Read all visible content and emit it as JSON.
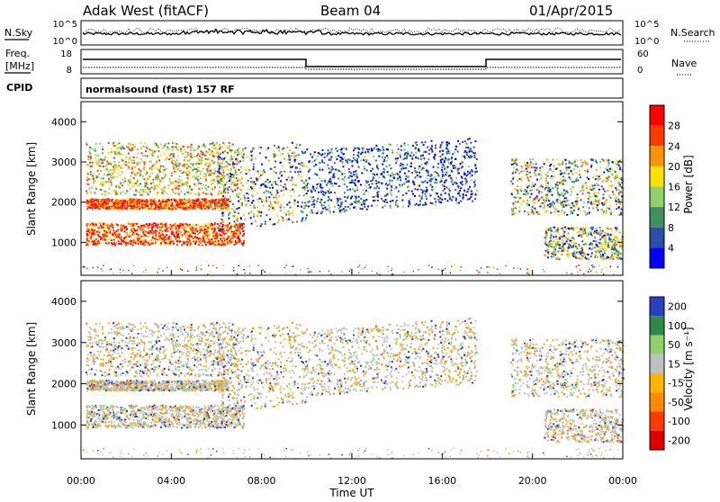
{
  "header": {
    "station": "Adak West (fitACF)",
    "beam": "Beam 04",
    "date": "01/Apr/2015"
  },
  "noise_panel": {
    "left_label": "N.Sky",
    "right_label": "N.Search",
    "left_ticks": [
      "10^5",
      "10^0"
    ],
    "right_ticks": [
      "10^5",
      "10^0"
    ]
  },
  "freq_panel": {
    "left_label_1": "Freq.",
    "left_label_2": "[MHz]",
    "right_label": "Nave",
    "left_ticks": [
      "18",
      "8"
    ],
    "right_ticks": [
      "60",
      "0"
    ]
  },
  "cpid": {
    "label": "CPID",
    "text": "normalsound (fast) 157 RF"
  },
  "x_axis": {
    "title": "Time UT",
    "ticks": [
      "00:00",
      "04:00",
      "08:00",
      "12:00",
      "16:00",
      "20:00",
      "00:00"
    ]
  },
  "chart_data": [
    {
      "type": "heatmap",
      "name": "power",
      "xlabel": "Time UT",
      "ylabel": "Slant Range [km]",
      "xlim": [
        0,
        24
      ],
      "ylim": [
        180,
        4500
      ],
      "y_ticks": [
        "1000",
        "2000",
        "3000",
        "4000"
      ],
      "colorbar": {
        "label": "Power [dB]",
        "ticks": [
          "4",
          "8",
          "12",
          "16",
          "20",
          "24",
          "28"
        ],
        "colors": [
          "#0000ff",
          "#2a4fa8",
          "#3f8f5f",
          "#8fd26a",
          "#ffe100",
          "#ff9400",
          "#ff3a00",
          "#ff0000"
        ]
      },
      "echo_regions": [
        {
          "t": [
            0.2,
            7.2
          ],
          "range": [
            950,
            1500
          ],
          "level": "high"
        },
        {
          "t": [
            0.2,
            6.5
          ],
          "range": [
            1850,
            2100
          ],
          "level": "high"
        },
        {
          "t": [
            0.2,
            7.0
          ],
          "range": [
            2200,
            3500
          ],
          "level": "mixed"
        },
        {
          "t": [
            6.0,
            10.0
          ],
          "range": [
            1300,
            3300
          ],
          "level": "medium"
        },
        {
          "t": [
            10.0,
            17.5
          ],
          "range": [
            1700,
            3300
          ],
          "level": "low"
        },
        {
          "t": [
            19.0,
            24.0
          ],
          "range": [
            1700,
            3100
          ],
          "level": "medium"
        },
        {
          "t": [
            20.5,
            24.0
          ],
          "range": [
            600,
            1400
          ],
          "level": "medium"
        }
      ]
    },
    {
      "type": "heatmap",
      "name": "velocity",
      "xlabel": "Time UT",
      "ylabel": "Slant Range [km]",
      "xlim": [
        0,
        24
      ],
      "ylim": [
        180,
        4500
      ],
      "y_ticks": [
        "1000",
        "2000",
        "3000",
        "4000"
      ],
      "colorbar": {
        "label": "Velocity [m s⁻¹]",
        "ticks": [
          "200",
          "100",
          "50",
          "15",
          "-15",
          "-50",
          "-100",
          "-200"
        ],
        "colors": [
          "#2a3fc0",
          "#2f8a4a",
          "#8fd26a",
          "#c0c0c0",
          "#ffb400",
          "#ff8a00",
          "#ff3a00",
          "#e00000"
        ]
      }
    }
  ]
}
